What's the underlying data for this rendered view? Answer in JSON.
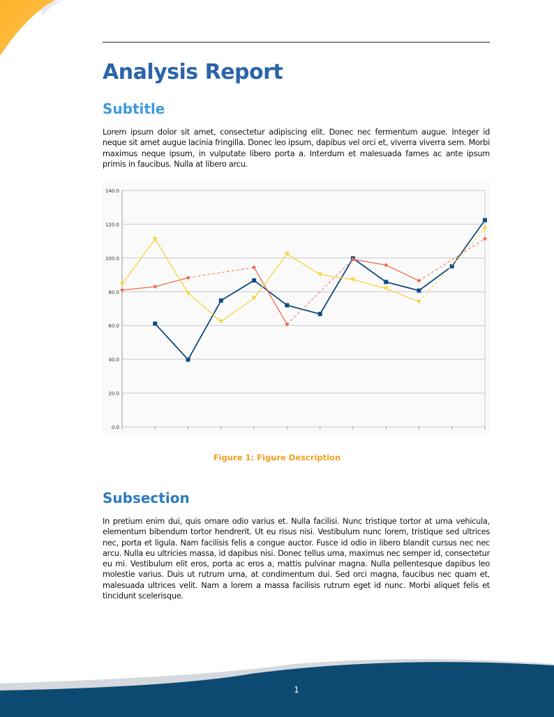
{
  "title": "Analysis Report",
  "subtitle": "Subtitle",
  "intro": "Lorem ipsum dolor sit amet, consectetur adipiscing elit. Donec nec fermentum augue. Integer id neque sit amet augue lacinia fringilla. Donec leo ipsum, dapibus vel orci et, viverra viverra sem. Morbi maximus neque ipsum, in vulputate libero porta a. Interdum et malesuada fames ac ante ipsum primis in faucibus. Nulla at libero arcu.",
  "figure_caption": "Figure 1: Figure Description",
  "subsection": "Subsection",
  "body": "In pretium enim dui, quis ornare odio varius et. Nulla facilisi. Nunc tristique tortor at urna vehicula, elementum bibendum tortor hendrerit. Ut eu risus nisi. Vestibulum nunc lorem, tristique sed ultrices nec, porta et ligula. Nam facilisis felis a congue auctor. Fusce id odio in libero blandit cursus nec nec arcu. Nulla eu ultricies massa, id dapibus nisi. Donec tellus urna, maximus nec semper id, consectetur eu mi. Vestibulum elit eros, porta ac eros a, mattis pulvinar magna. Nulla pellentesque dapibus leo molestie varius. Duis ut rutrum urna, at condimentum dui. Sed orci magna, faucibus nec quam et, malesuada ultrices velit. Nam a lorem a massa facilisis rutrum eget id nunc. Morbi aliquet felis et tincidunt scelerisque.",
  "page_number": "1",
  "colors": {
    "title": "#2b64a8",
    "subtitle": "#3d9ae0",
    "caption": "#f0a020",
    "footer": "#0d4a72",
    "corner": "#fdb22a"
  },
  "chart_data": {
    "type": "line",
    "ylim": [
      0,
      140
    ],
    "yticks": [
      "0.0",
      "20.0",
      "40.0",
      "60.0",
      "80.0",
      "100.0",
      "120.0",
      "140.0"
    ],
    "x": [
      0,
      1,
      2,
      3,
      4,
      5,
      6,
      7,
      8,
      9,
      10,
      11
    ],
    "grid": true,
    "series": [
      {
        "color": "#0d4a80",
        "marker": "square",
        "values": [
          null,
          61.1,
          39.8,
          74.8,
          86.7,
          72.0,
          66.8,
          99.8,
          85.8,
          80.7,
          95.1,
          122.4
        ]
      },
      {
        "color": "#ee6a4a",
        "marker": "diamond",
        "values": [
          81.0,
          83.0,
          88.3,
          null,
          94.4,
          60.7,
          null,
          99.2,
          95.8,
          86.5,
          null,
          111.4
        ]
      },
      {
        "color": "#f7d23a",
        "marker": "triangle-down",
        "values": [
          84.4,
          111.2,
          79.2,
          62.3,
          76.2,
          102.3,
          90.2,
          87.2,
          81.9,
          74.1,
          null,
          117.3
        ]
      }
    ]
  }
}
